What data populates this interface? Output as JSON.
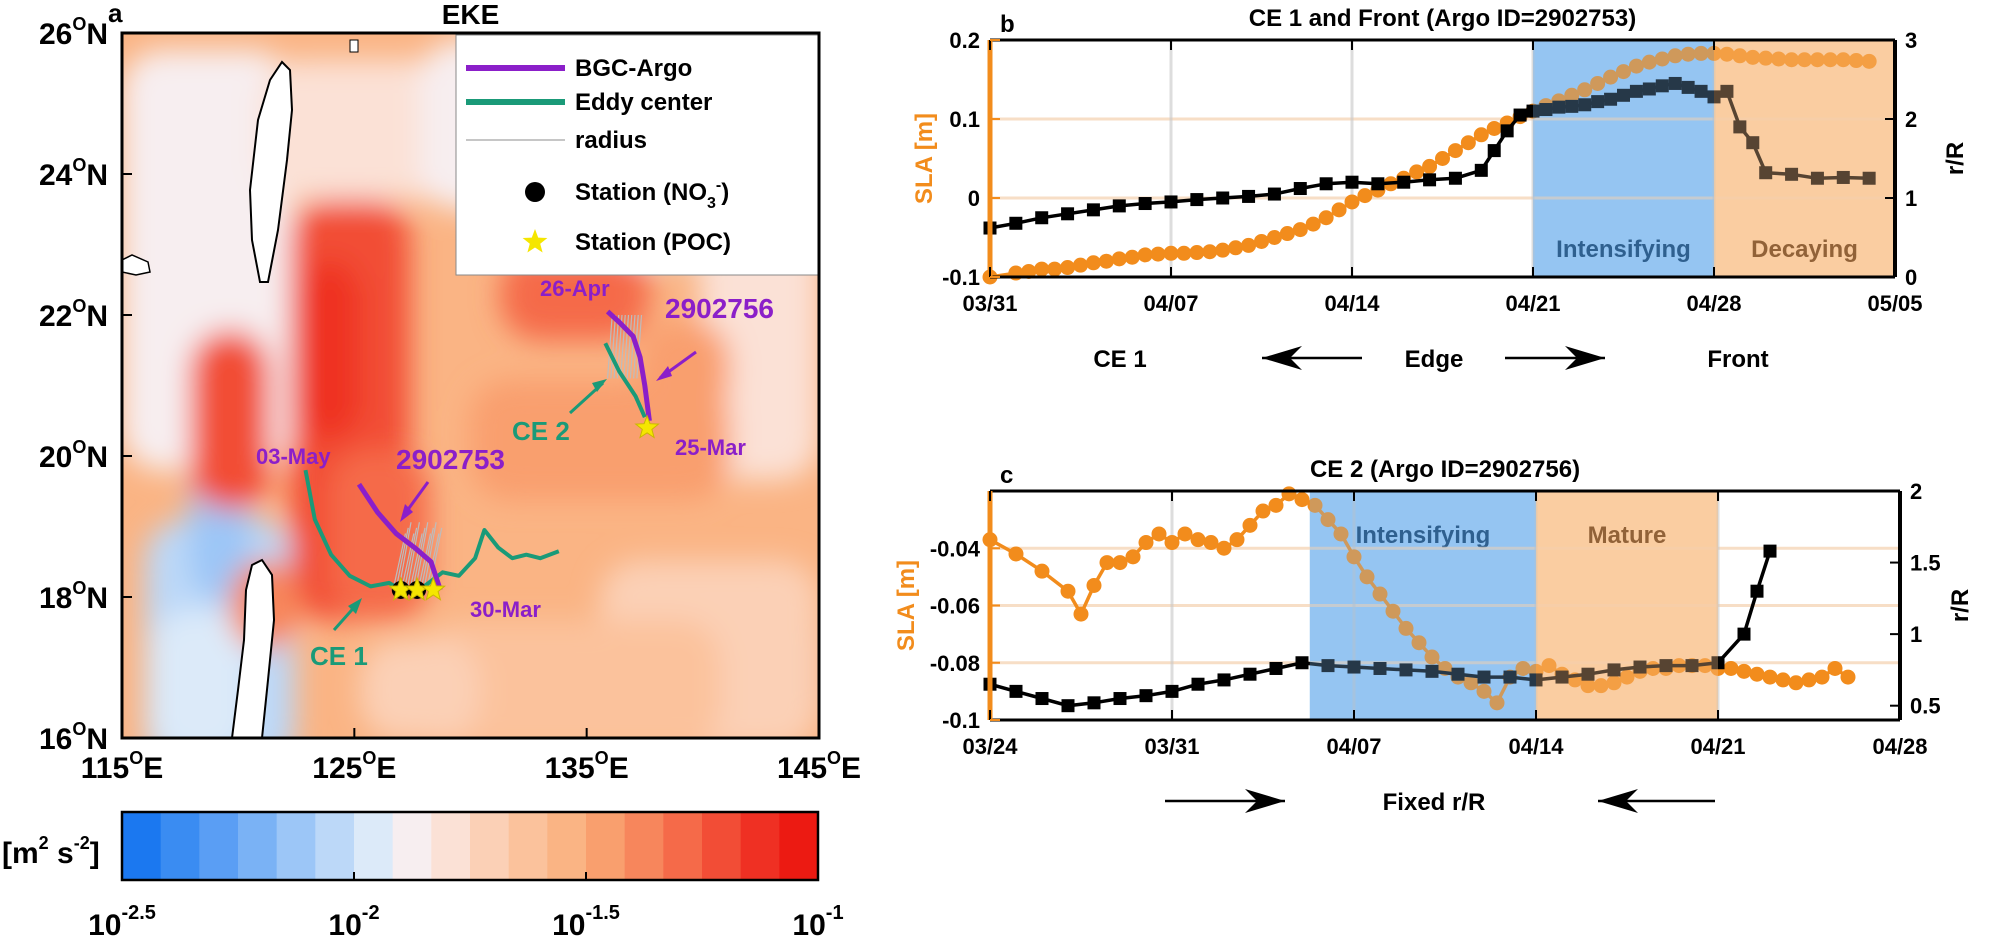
{
  "colors": {
    "orange": "#f28c1c",
    "black": "#000000",
    "purple": "#8b1fc9",
    "green": "#1a9a78",
    "blue_shade": "#7fb8f0",
    "orange_shade": "#f8c48f",
    "brown": "#5a3a1a",
    "mix": "#a98060",
    "dark_blue_text": "#0d3a66",
    "dark_brown_text": "#5a2e0a"
  },
  "chart_data": [
    {
      "type": "heatmap",
      "panel_letter": "a",
      "title": "EKE",
      "xlim": [
        115,
        145
      ],
      "ylim": [
        16,
        26
      ],
      "x_ticks": [
        115,
        125,
        135,
        145
      ],
      "y_ticks": [
        16,
        18,
        20,
        22,
        24,
        26
      ],
      "x_tick_labels": [
        [
          "115",
          "O",
          "E"
        ],
        [
          "125",
          "O",
          "E"
        ],
        [
          "135",
          "O",
          "E"
        ],
        [
          "145",
          "O",
          "E"
        ]
      ],
      "y_tick_labels": [
        [
          "16",
          "O",
          "N"
        ],
        [
          "18",
          "O",
          "N"
        ],
        [
          "20",
          "O",
          "N"
        ],
        [
          "22",
          "O",
          "N"
        ],
        [
          "24",
          "O",
          "N"
        ],
        [
          "26",
          "O",
          "N"
        ]
      ],
      "legend": [
        {
          "label": "BGC-Argo",
          "kind": "line",
          "color": "#8b1fc9"
        },
        {
          "label": "Eddy center",
          "kind": "line",
          "color": "#1a9a78"
        },
        {
          "label": "radius",
          "kind": "line",
          "color": "#b4b4b4"
        },
        {
          "label_main": "Station (NO",
          "label_sub": "3",
          "label_sup": "-",
          "label_end": ")",
          "kind": "dot",
          "color": "#000000"
        },
        {
          "label": "Station (POC)",
          "kind": "star",
          "color": "#f5e600"
        }
      ],
      "annotations": [
        "26-Apr",
        "2902756",
        "CE 2",
        "25-Mar",
        "03-May",
        "2902753",
        "30-Mar",
        "CE 1"
      ],
      "argo_2902753": [
        [
          125.2,
          19.6
        ],
        [
          126.0,
          19.2
        ],
        [
          126.8,
          18.9
        ],
        [
          127.6,
          18.7
        ],
        [
          128.3,
          18.5
        ],
        [
          128.7,
          18.1
        ]
      ],
      "eddy_ce1": [
        [
          122.9,
          19.8
        ],
        [
          123.3,
          19.1
        ],
        [
          124.0,
          18.6
        ],
        [
          124.8,
          18.3
        ],
        [
          125.7,
          18.15
        ],
        [
          126.5,
          18.2
        ],
        [
          127.0,
          18.1
        ],
        [
          127.6,
          18.05
        ],
        [
          128.2,
          18.2
        ],
        [
          128.8,
          18.35
        ],
        [
          129.5,
          18.3
        ],
        [
          130.2,
          18.55
        ],
        [
          130.6,
          18.95
        ],
        [
          131.2,
          18.7
        ],
        [
          131.8,
          18.55
        ],
        [
          132.4,
          18.6
        ],
        [
          133.0,
          18.55
        ],
        [
          133.8,
          18.65
        ]
      ],
      "argo_2902756": [
        [
          135.9,
          22.05
        ],
        [
          136.4,
          21.9
        ],
        [
          137.0,
          21.7
        ],
        [
          137.3,
          21.4
        ],
        [
          137.5,
          21.0
        ],
        [
          137.7,
          20.5
        ]
      ],
      "eddy_ce2": [
        [
          135.8,
          21.6
        ],
        [
          136.1,
          21.4
        ],
        [
          136.4,
          21.2
        ],
        [
          136.8,
          21.0
        ],
        [
          137.1,
          20.85
        ],
        [
          137.5,
          20.55
        ]
      ],
      "stations_no3": [
        [
          127.0,
          18.1
        ],
        [
          127.7,
          18.1
        ]
      ],
      "stations_poc": [
        [
          127.0,
          18.1
        ],
        [
          127.7,
          18.1
        ],
        [
          128.4,
          18.1
        ],
        [
          137.6,
          20.4
        ]
      ],
      "colorbar": {
        "label_main": "[m",
        "label_sup1": "2",
        "label_mid": " s",
        "label_sup2": "-2",
        "label_end": "]",
        "tick_values": [
          -2.5,
          -2,
          -1.5,
          -1
        ],
        "tick_labels": [
          [
            "10",
            "-2.5"
          ],
          [
            "10",
            "-2"
          ],
          [
            "10",
            "-1.5"
          ],
          [
            "10",
            "-1"
          ]
        ],
        "scale": "log",
        "colors": [
          "#1b78f0",
          "#3a8cf2",
          "#5a9ef4",
          "#7ab2f5",
          "#9cc6f7",
          "#bcd8f8",
          "#dceaf9",
          "#f7eef0",
          "#fbe1d6",
          "#fbd0b6",
          "#fbc29c",
          "#fab484",
          "#f99f6e",
          "#f7865c",
          "#f56a49",
          "#f24d36",
          "#ef3023",
          "#ec1a12"
        ]
      }
    },
    {
      "type": "line",
      "panel_letter": "b",
      "title": "CE 1 and Front (Argo ID=2902753)",
      "ylabel": "SLA [m]",
      "ylabel_right": "r/R",
      "x_tick_labels": [
        "03/31",
        "04/07",
        "04/14",
        "04/21",
        "04/28",
        "05/05"
      ],
      "x_ticks_day": [
        0,
        7,
        14,
        21,
        28,
        35
      ],
      "xlim_day": [
        0,
        35
      ],
      "ylim": [
        -0.1,
        0.2
      ],
      "ylim_right": [
        0,
        3
      ],
      "y_tick_labels": [
        "-0.1",
        "0",
        "0.1",
        "0.2"
      ],
      "y_ticks": [
        -0.1,
        0,
        0.1,
        0.2
      ],
      "y_tick_labels_right": [
        "0",
        "1",
        "2",
        "3"
      ],
      "y_ticks_right": [
        0,
        1,
        2,
        3
      ],
      "phases": [
        {
          "label": "Intensifying",
          "start_day": 21,
          "end_day": 28,
          "color": "#7fb8f0"
        },
        {
          "label": "Decaying",
          "start_day": 28,
          "end_day": 35,
          "color": "#f8c48f"
        }
      ],
      "series": [
        {
          "axis": "left",
          "marker": "circle",
          "color": "#f28c1c",
          "x_day": [
            0,
            1,
            1.5,
            2,
            2.5,
            3,
            3.5,
            4,
            4.5,
            5,
            5.5,
            6,
            6.5,
            7,
            7.5,
            8,
            8.5,
            9,
            9.5,
            10,
            10.5,
            11,
            11.5,
            12,
            12.5,
            13,
            13.5,
            14,
            14.5,
            15,
            15.5,
            16,
            16.5,
            17,
            17.5,
            18,
            18.5,
            19,
            19.5,
            20,
            20.5,
            21,
            21.5,
            22,
            22.5,
            23,
            23.5,
            24,
            24.5,
            25,
            25.5,
            26,
            26.5,
            27,
            27.5,
            28,
            28.5,
            29,
            29.5,
            30,
            30.5,
            31,
            31.5,
            32,
            32.5,
            33,
            33.5,
            34
          ],
          "values": [
            -0.1,
            -0.095,
            -0.093,
            -0.09,
            -0.09,
            -0.088,
            -0.085,
            -0.082,
            -0.08,
            -0.077,
            -0.075,
            -0.072,
            -0.071,
            -0.07,
            -0.07,
            -0.069,
            -0.068,
            -0.066,
            -0.063,
            -0.06,
            -0.055,
            -0.05,
            -0.045,
            -0.04,
            -0.033,
            -0.025,
            -0.015,
            -0.005,
            0.003,
            0.01,
            0.018,
            0.025,
            0.033,
            0.04,
            0.05,
            0.06,
            0.07,
            0.08,
            0.088,
            0.095,
            0.103,
            0.11,
            0.117,
            0.123,
            0.13,
            0.137,
            0.145,
            0.153,
            0.16,
            0.167,
            0.172,
            0.176,
            0.18,
            0.182,
            0.183,
            0.183,
            0.182,
            0.18,
            0.178,
            0.177,
            0.176,
            0.175,
            0.175,
            0.175,
            0.175,
            0.175,
            0.174,
            0.173
          ]
        },
        {
          "axis": "right",
          "marker": "square",
          "color": "#000000",
          "x_day": [
            0,
            1,
            2,
            3,
            4,
            5,
            6,
            7,
            8,
            9,
            10,
            11,
            12,
            13,
            14,
            15,
            16,
            17,
            18,
            19,
            19.5,
            20,
            20.5,
            21,
            21.5,
            22,
            22.5,
            23,
            23.5,
            24,
            24.5,
            25,
            25.5,
            26,
            26.5,
            27,
            27.5,
            28,
            28.5,
            29,
            29.5,
            30,
            31,
            32,
            33,
            34
          ],
          "values": [
            0.62,
            0.68,
            0.75,
            0.8,
            0.85,
            0.9,
            0.93,
            0.95,
            0.98,
            1.0,
            1.02,
            1.05,
            1.12,
            1.18,
            1.2,
            1.18,
            1.2,
            1.23,
            1.25,
            1.35,
            1.6,
            1.85,
            2.05,
            2.1,
            2.12,
            2.15,
            2.16,
            2.18,
            2.22,
            2.25,
            2.3,
            2.35,
            2.38,
            2.42,
            2.45,
            2.4,
            2.35,
            2.28,
            2.35,
            1.9,
            1.7,
            1.32,
            1.3,
            1.25,
            1.26,
            1.25
          ]
        }
      ],
      "footer_labels": [
        "CE 1",
        "Edge",
        "Front"
      ]
    },
    {
      "type": "line",
      "panel_letter": "c",
      "title": "CE 2 (Argo ID=2902756)",
      "ylabel": "SLA [m]",
      "ylabel_right": "r/R",
      "x_tick_labels": [
        "03/24",
        "03/31",
        "04/07",
        "04/14",
        "04/21",
        "04/28"
      ],
      "x_ticks_day": [
        0,
        7,
        14,
        21,
        28,
        35
      ],
      "xlim_day": [
        0,
        35
      ],
      "ylim": [
        -0.1,
        -0.02
      ],
      "ylim_right": [
        0.4,
        2
      ],
      "y_tick_labels": [
        "-0.1",
        "-0.08",
        "-0.06",
        "-0.04"
      ],
      "y_ticks": [
        -0.1,
        -0.08,
        -0.06,
        -0.04
      ],
      "y_tick_labels_right": [
        "0.5",
        "1",
        "1.5",
        "2"
      ],
      "y_ticks_right": [
        0.5,
        1,
        1.5,
        2
      ],
      "phases": [
        {
          "label": "Intensifying",
          "start_day": 12.3,
          "end_day": 21,
          "color": "#7fb8f0"
        },
        {
          "label": "Mature",
          "start_day": 21,
          "end_day": 28,
          "color": "#f8c48f"
        }
      ],
      "series": [
        {
          "axis": "left",
          "marker": "circle",
          "color": "#f28c1c",
          "x_day": [
            0,
            1,
            2,
            3,
            3.5,
            4,
            4.5,
            5,
            5.5,
            6,
            6.5,
            7,
            7.5,
            8,
            8.5,
            9,
            9.5,
            10,
            10.5,
            11,
            11.5,
            12,
            12.5,
            13,
            13.5,
            14,
            14.5,
            15,
            15.5,
            16,
            16.5,
            17,
            17.5,
            18,
            18.5,
            19,
            19.5,
            20,
            20.5,
            21,
            21.5,
            22,
            22.5,
            23,
            23.5,
            24,
            24.5,
            25,
            25.5,
            26,
            26.5,
            27,
            27.5,
            28,
            28.5,
            29,
            29.5,
            30,
            30.5,
            31,
            31.5,
            32,
            32.5,
            33
          ],
          "values": [
            -0.037,
            -0.042,
            -0.048,
            -0.055,
            -0.063,
            -0.053,
            -0.045,
            -0.045,
            -0.043,
            -0.038,
            -0.035,
            -0.038,
            -0.035,
            -0.037,
            -0.038,
            -0.04,
            -0.037,
            -0.032,
            -0.027,
            -0.025,
            -0.021,
            -0.023,
            -0.025,
            -0.03,
            -0.035,
            -0.043,
            -0.05,
            -0.056,
            -0.062,
            -0.068,
            -0.073,
            -0.078,
            -0.082,
            -0.085,
            -0.087,
            -0.09,
            -0.094,
            -0.085,
            -0.082,
            -0.083,
            -0.081,
            -0.084,
            -0.086,
            -0.088,
            -0.088,
            -0.087,
            -0.085,
            -0.083,
            -0.082,
            -0.082,
            -0.081,
            -0.081,
            -0.081,
            -0.082,
            -0.082,
            -0.083,
            -0.084,
            -0.085,
            -0.086,
            -0.087,
            -0.086,
            -0.085,
            -0.082,
            -0.085
          ]
        },
        {
          "axis": "right",
          "marker": "square",
          "color": "#000000",
          "x_day": [
            0,
            1,
            2,
            3,
            4,
            5,
            6,
            7,
            8,
            9,
            10,
            11,
            12,
            13,
            14,
            15,
            16,
            17,
            18,
            19,
            20,
            21,
            22,
            23,
            24,
            25,
            26,
            27,
            28,
            29,
            29.5,
            30
          ],
          "values": [
            0.65,
            0.6,
            0.55,
            0.5,
            0.52,
            0.55,
            0.57,
            0.6,
            0.65,
            0.68,
            0.72,
            0.76,
            0.8,
            0.78,
            0.77,
            0.76,
            0.75,
            0.74,
            0.72,
            0.7,
            0.7,
            0.68,
            0.7,
            0.72,
            0.75,
            0.77,
            0.78,
            0.78,
            0.8,
            1.0,
            1.3,
            1.58
          ]
        }
      ],
      "footer_labels": [
        "Fixed r/R"
      ]
    }
  ]
}
